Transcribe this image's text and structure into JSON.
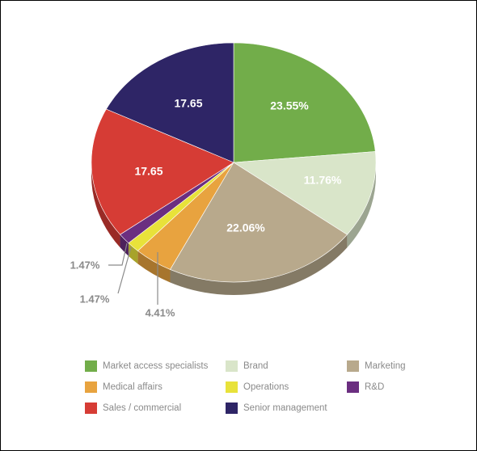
{
  "chart_data": {
    "type": "pie",
    "categories": [
      "Market access specialists",
      "Brand",
      "Marketing",
      "Medical affairs",
      "Operations",
      "R&D",
      "Sales / commercial",
      "Senior management"
    ],
    "values": [
      23.55,
      11.76,
      22.06,
      4.41,
      1.47,
      1.47,
      17.65,
      17.65
    ],
    "labels": [
      "23.55%",
      "11.76%",
      "22.06%",
      "4.41%",
      "1.47%",
      "1.47%",
      "17.65",
      "17.65"
    ],
    "colors": [
      "#72ad4a",
      "#d9e5c9",
      "#b8a98c",
      "#e8a33f",
      "#e8e23a",
      "#6b2e80",
      "#d63c35",
      "#2e2566"
    ],
    "legend_position": "bottom",
    "style": "3d"
  },
  "legend": [
    {
      "label": "Market access specialists",
      "color": "#72ad4a"
    },
    {
      "label": "Brand",
      "color": "#d9e5c9"
    },
    {
      "label": "Marketing",
      "color": "#b8a98c"
    },
    {
      "label": "Medical affairs",
      "color": "#e8a33f"
    },
    {
      "label": "Operations",
      "color": "#e8e23a"
    },
    {
      "label": "R&D",
      "color": "#6b2e80"
    },
    {
      "label": "Sales / commercial",
      "color": "#d63c35"
    },
    {
      "label": "Senior management",
      "color": "#2e2566"
    }
  ]
}
